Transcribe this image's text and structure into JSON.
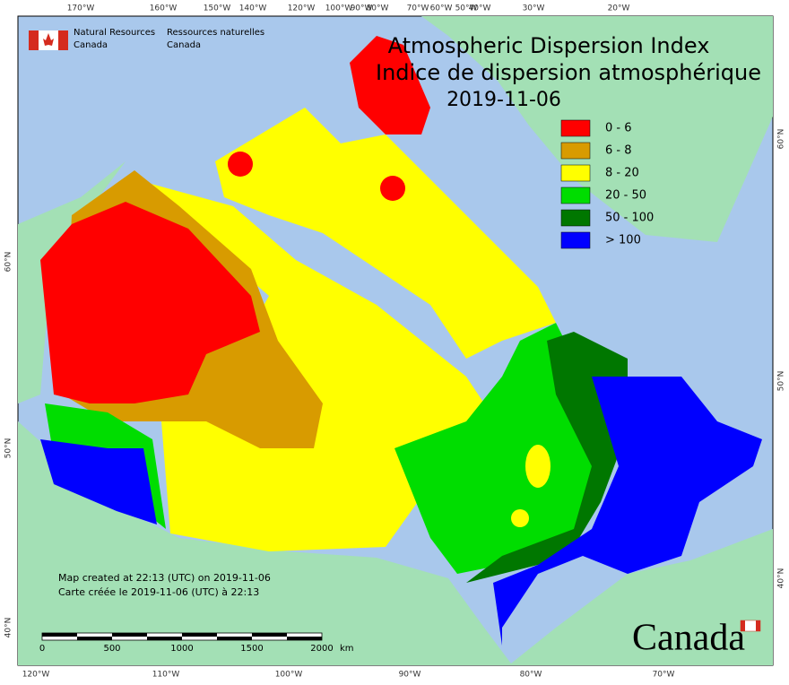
{
  "header": {
    "agency_en": [
      "Natural Resources",
      "Canada"
    ],
    "agency_fr": [
      "Ressources naturelles",
      "Canada"
    ]
  },
  "title": [
    "Atmospheric Dispersion Index",
    "Indice de dispersion atmosphérique"
  ],
  "date": "2019-11-06",
  "legend": [
    {
      "label": "0 - 6",
      "color": "#ff0000"
    },
    {
      "label": "6 - 8",
      "color": "#d89b00"
    },
    {
      "label": "8 - 20",
      "color": "#ffff00"
    },
    {
      "label": "20 - 50",
      "color": "#00dd00"
    },
    {
      "label": "50 - 100",
      "color": "#007700"
    },
    {
      "label": "> 100",
      "color": "#0000ff"
    }
  ],
  "axes": {
    "top": [
      "170°W",
      "160°W",
      "150°W",
      "140°W",
      "120°W",
      "100°W",
      "90°W",
      "80°W",
      "70°W",
      "60°W",
      "50°W",
      "40°W",
      "30°W",
      "20°W"
    ],
    "bottom": [
      "120°W",
      "110°W",
      "100°W",
      "90°W",
      "80°W",
      "70°W"
    ],
    "left": [
      "60°N",
      "50°N",
      "40°N"
    ],
    "right": [
      "60°N",
      "50°N",
      "40°N"
    ]
  },
  "notes": [
    "Map created at 22:13 (UTC) on 2019-11-06",
    "Carte créée le 2019-11-06 (UTC) à 22:13"
  ],
  "scale": {
    "ticks": [
      "0",
      "500",
      "1000",
      "1500",
      "2000"
    ],
    "unit": "km"
  },
  "wordmark": "Canada"
}
